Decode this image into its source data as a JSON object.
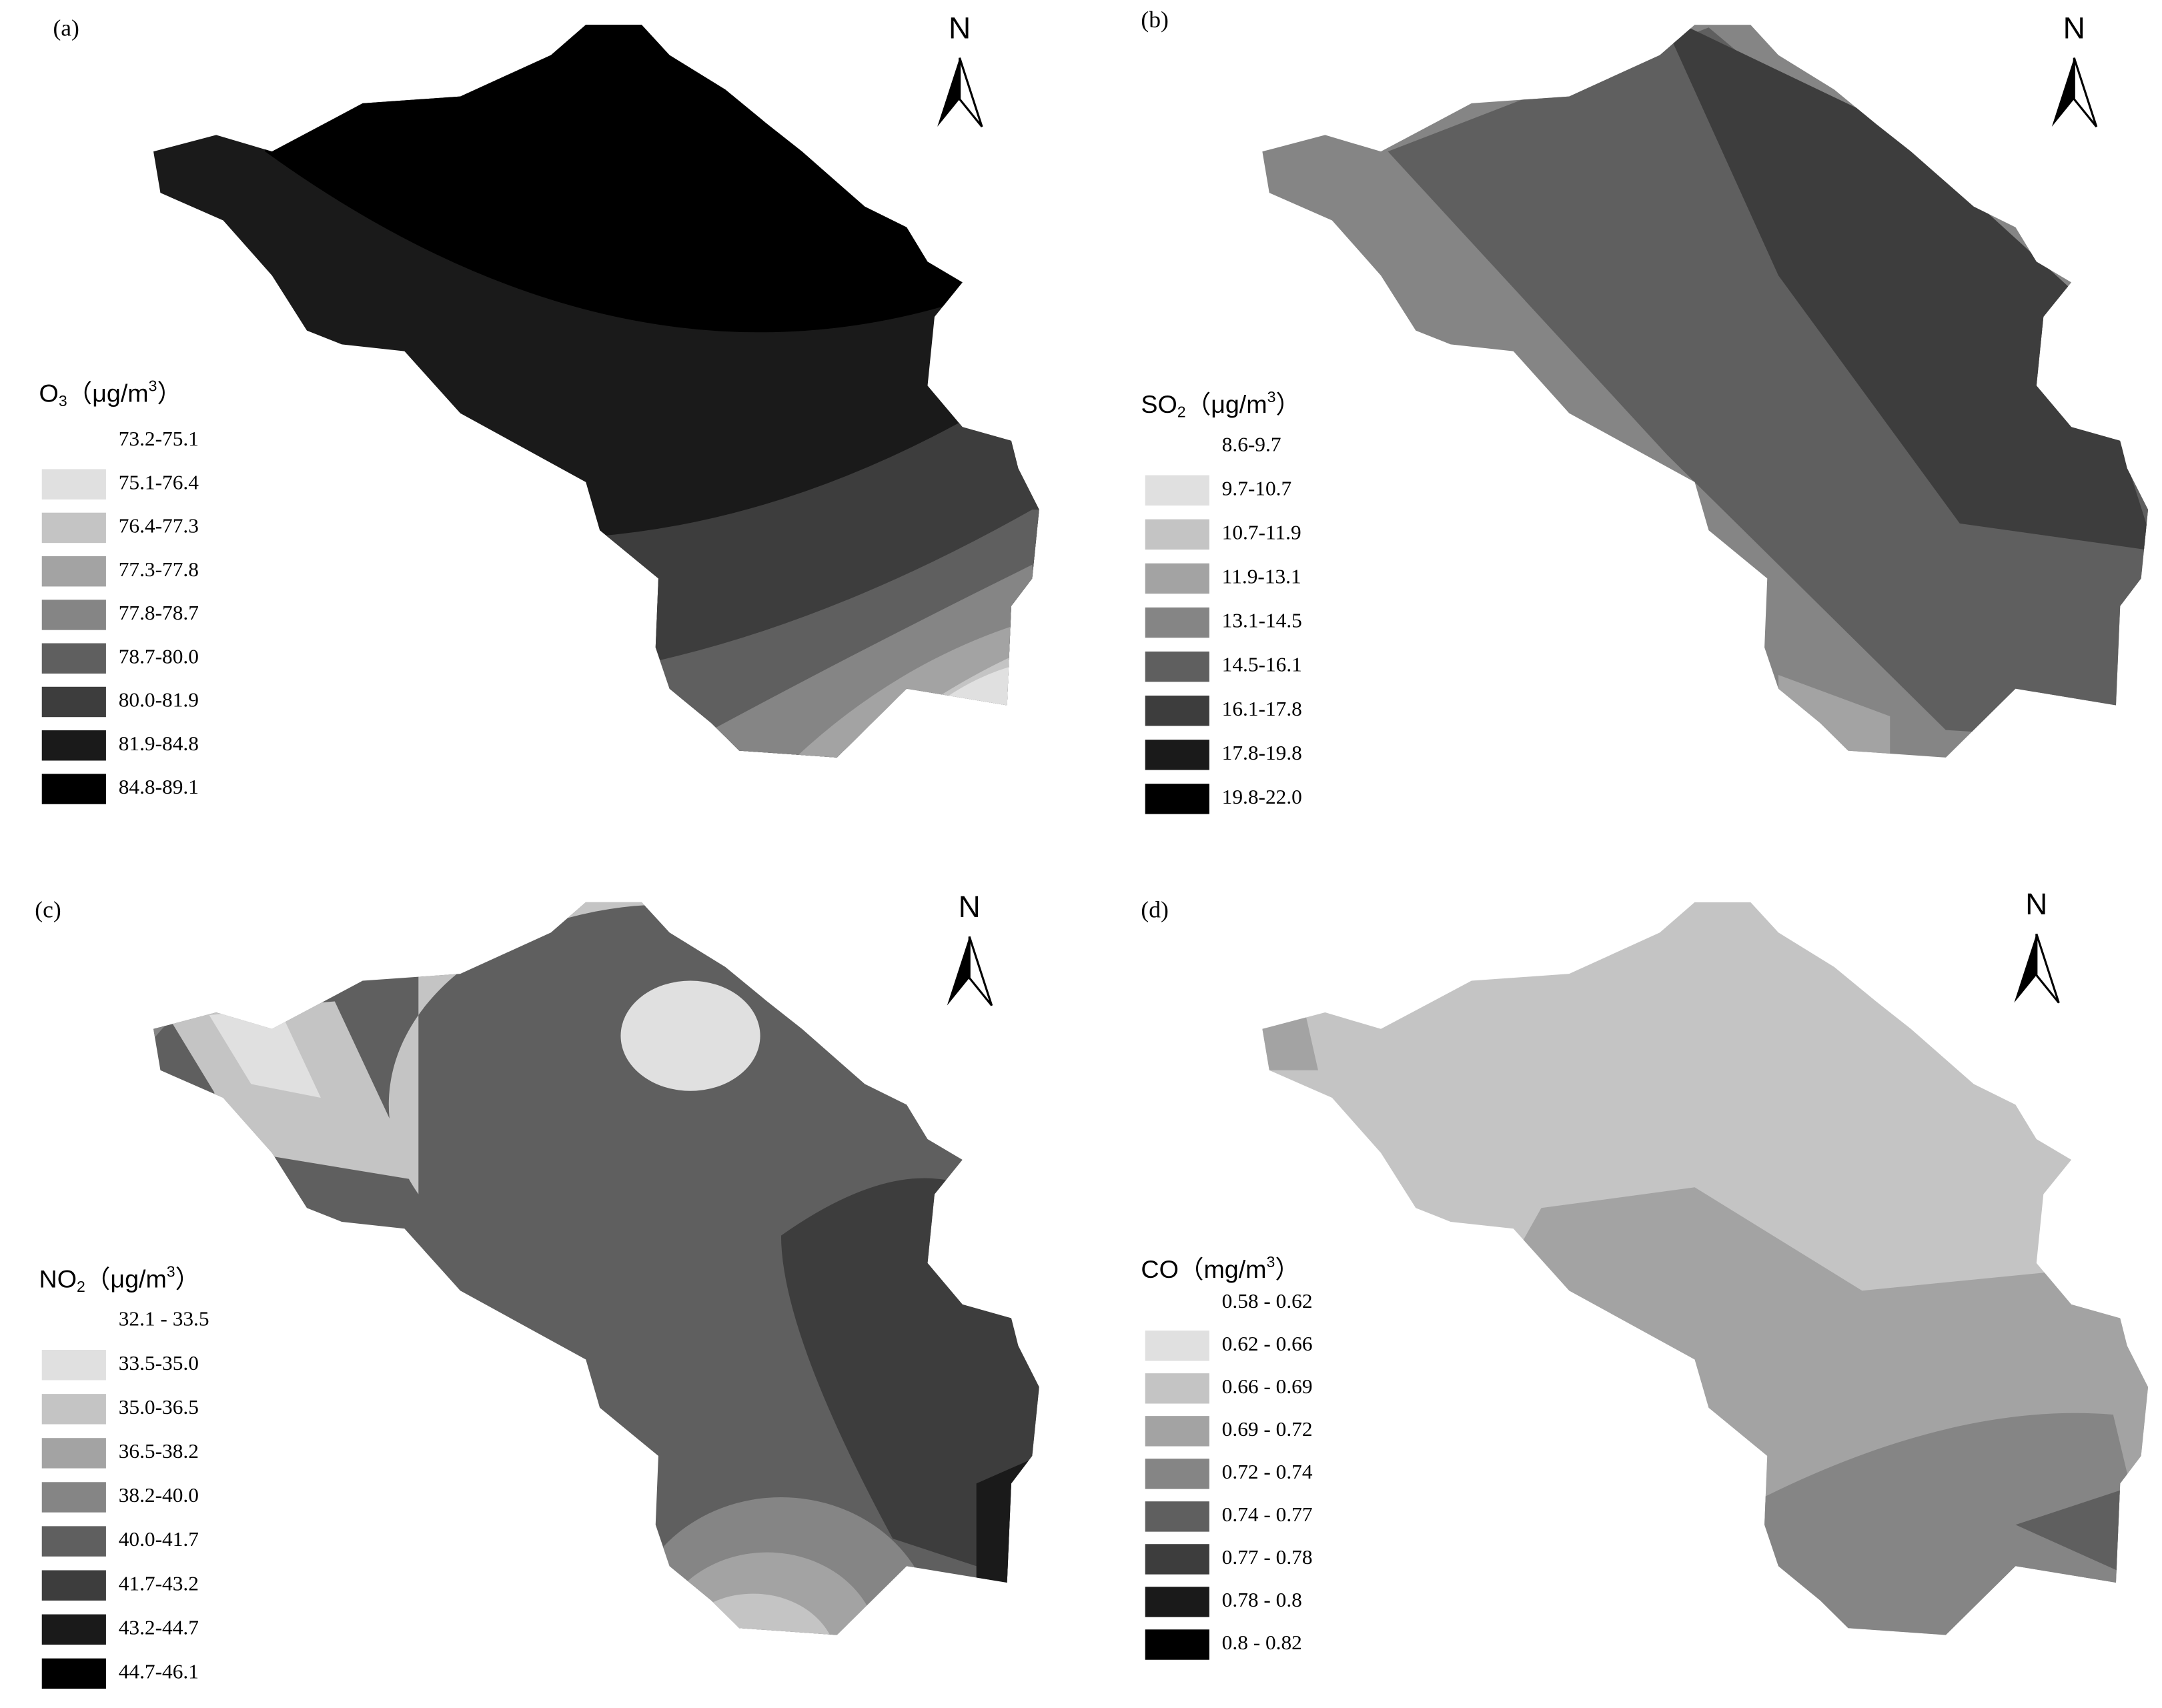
{
  "panels": [
    {
      "label": "(a)",
      "north": "N",
      "legend_title": [
        {
          "text": "O"
        },
        {
          "text": "3",
          "position": "sub"
        },
        {
          "text": "（μg/m"
        },
        {
          "text": "3",
          "position": "sup"
        },
        {
          "text": "）"
        }
      ],
      "legend": [
        {
          "label": "73.2-75.1",
          "color": "#ffffff"
        },
        {
          "label": "75.1-76.4",
          "color": "#e0e0e0"
        },
        {
          "label": "76.4-77.3",
          "color": "#c4c4c4"
        },
        {
          "label": "77.3-77.8",
          "color": "#a3a3a3"
        },
        {
          "label": "77.8-78.7",
          "color": "#858585"
        },
        {
          "label": "78.7-80.0",
          "color": "#5f5f5f"
        },
        {
          "label": "80.0-81.9",
          "color": "#3d3d3d"
        },
        {
          "label": "81.9-84.8",
          "color": "#1a1a1a"
        },
        {
          "label": "84.8-89.1",
          "color": "#000000"
        }
      ]
    },
    {
      "label": "(b)",
      "north": "N",
      "legend_title": [
        {
          "text": "SO"
        },
        {
          "text": "2",
          "position": "sub"
        },
        {
          "text": "（μg/m"
        },
        {
          "text": "3",
          "position": "sup"
        },
        {
          "text": "）"
        }
      ],
      "legend": [
        {
          "label": "8.6-9.7",
          "color": "#ffffff"
        },
        {
          "label": "9.7-10.7",
          "color": "#e0e0e0"
        },
        {
          "label": "10.7-11.9",
          "color": "#c4c4c4"
        },
        {
          "label": "11.9-13.1",
          "color": "#a3a3a3"
        },
        {
          "label": "13.1-14.5",
          "color": "#858585"
        },
        {
          "label": "14.5-16.1",
          "color": "#5f5f5f"
        },
        {
          "label": "16.1-17.8",
          "color": "#3d3d3d"
        },
        {
          "label": "17.8-19.8",
          "color": "#1a1a1a"
        },
        {
          "label": "19.8-22.0",
          "color": "#000000"
        }
      ]
    },
    {
      "label": "(c)",
      "north": "N",
      "legend_title": [
        {
          "text": "NO"
        },
        {
          "text": "2",
          "position": "sub"
        },
        {
          "text": "（μg/m"
        },
        {
          "text": "3",
          "position": "sup"
        },
        {
          "text": "）"
        }
      ],
      "legend": [
        {
          "label": "32.1 - 33.5",
          "color": "#ffffff"
        },
        {
          "label": "33.5-35.0",
          "color": "#e0e0e0"
        },
        {
          "label": "35.0-36.5",
          "color": "#c4c4c4"
        },
        {
          "label": "36.5-38.2",
          "color": "#a3a3a3"
        },
        {
          "label": "38.2-40.0",
          "color": "#858585"
        },
        {
          "label": "40.0-41.7",
          "color": "#5f5f5f"
        },
        {
          "label": "41.7-43.2",
          "color": "#3d3d3d"
        },
        {
          "label": "43.2-44.7",
          "color": "#1a1a1a"
        },
        {
          "label": "44.7-46.1",
          "color": "#000000"
        }
      ]
    },
    {
      "label": "(d)",
      "north": "N",
      "legend_title": [
        {
          "text": "CO（mg/m"
        },
        {
          "text": "3",
          "position": "sup"
        },
        {
          "text": "）"
        }
      ],
      "legend": [
        {
          "label": "0.58 - 0.62",
          "color": "#ffffff"
        },
        {
          "label": "0.62 - 0.66",
          "color": "#e0e0e0"
        },
        {
          "label": "0.66 - 0.69",
          "color": "#c4c4c4"
        },
        {
          "label": "0.69 - 0.72",
          "color": "#a3a3a3"
        },
        {
          "label": "0.72 - 0.74",
          "color": "#858585"
        },
        {
          "label": "0.74 - 0.77",
          "color": "#5f5f5f"
        },
        {
          "label": "0.77 - 0.78",
          "color": "#3d3d3d"
        },
        {
          "label": "0.78 - 0.8",
          "color": "#1a1a1a"
        },
        {
          "label": "0.8 - 0.82",
          "color": "#000000"
        }
      ]
    }
  ]
}
